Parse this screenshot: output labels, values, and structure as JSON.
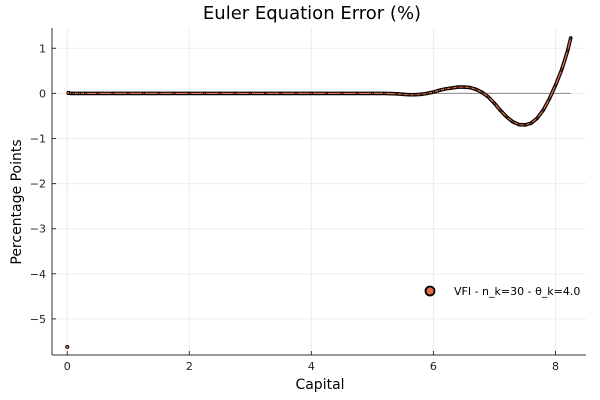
{
  "chart_data": {
    "type": "scatter",
    "title": "Euler Equation Error (%)",
    "xlabel": "Capital",
    "ylabel": "Percentage Points",
    "xlim": [
      -0.25,
      8.5
    ],
    "ylim": [
      -5.8,
      1.45
    ],
    "xticks": [
      0,
      2,
      4,
      6,
      8
    ],
    "xtick_labels": [
      "0",
      "2",
      "4",
      "6",
      "8"
    ],
    "yticks": [
      1,
      0,
      -1,
      -2,
      -3,
      -4,
      -5
    ],
    "ytick_labels": [
      "1",
      "0",
      "−1",
      "−2",
      "−3",
      "−4",
      "−5"
    ],
    "grid": true,
    "legend_position": "bottom-right",
    "reference_line": 0,
    "series": [
      {
        "name": "VFI - n_k=30 - θ_k=4.0",
        "color": "#e26f46",
        "outline": "#000000",
        "x": [
          0.0,
          0.02,
          0.05,
          0.1,
          0.2,
          0.3,
          0.5,
          0.75,
          1.0,
          1.25,
          1.5,
          1.75,
          2.0,
          2.25,
          2.5,
          2.75,
          3.0,
          3.25,
          3.5,
          3.75,
          4.0,
          4.25,
          4.5,
          4.75,
          5.0,
          5.2,
          5.4,
          5.5,
          5.6,
          5.7,
          5.8,
          5.9,
          6.0,
          6.1,
          6.2,
          6.3,
          6.4,
          6.5,
          6.6,
          6.7,
          6.8,
          6.9,
          7.0,
          7.1,
          7.2,
          7.3,
          7.4,
          7.5,
          7.6,
          7.7,
          7.8,
          7.9,
          8.0,
          8.1,
          8.2,
          8.25
        ],
        "y": [
          -5.62,
          0.01,
          0.0,
          0.0,
          0.0,
          0.0,
          0.0,
          0.0,
          0.0,
          0.0,
          0.0,
          0.0,
          0.0,
          0.0,
          0.0,
          0.0,
          0.0,
          0.0,
          0.0,
          0.0,
          0.0,
          0.0,
          0.0,
          0.0,
          0.0,
          0.0,
          -0.01,
          -0.02,
          -0.03,
          -0.03,
          -0.02,
          0.0,
          0.03,
          0.07,
          0.1,
          0.12,
          0.14,
          0.14,
          0.13,
          0.09,
          0.02,
          -0.08,
          -0.22,
          -0.38,
          -0.52,
          -0.63,
          -0.69,
          -0.7,
          -0.66,
          -0.55,
          -0.37,
          -0.12,
          0.18,
          0.52,
          0.95,
          1.23
        ]
      }
    ]
  }
}
